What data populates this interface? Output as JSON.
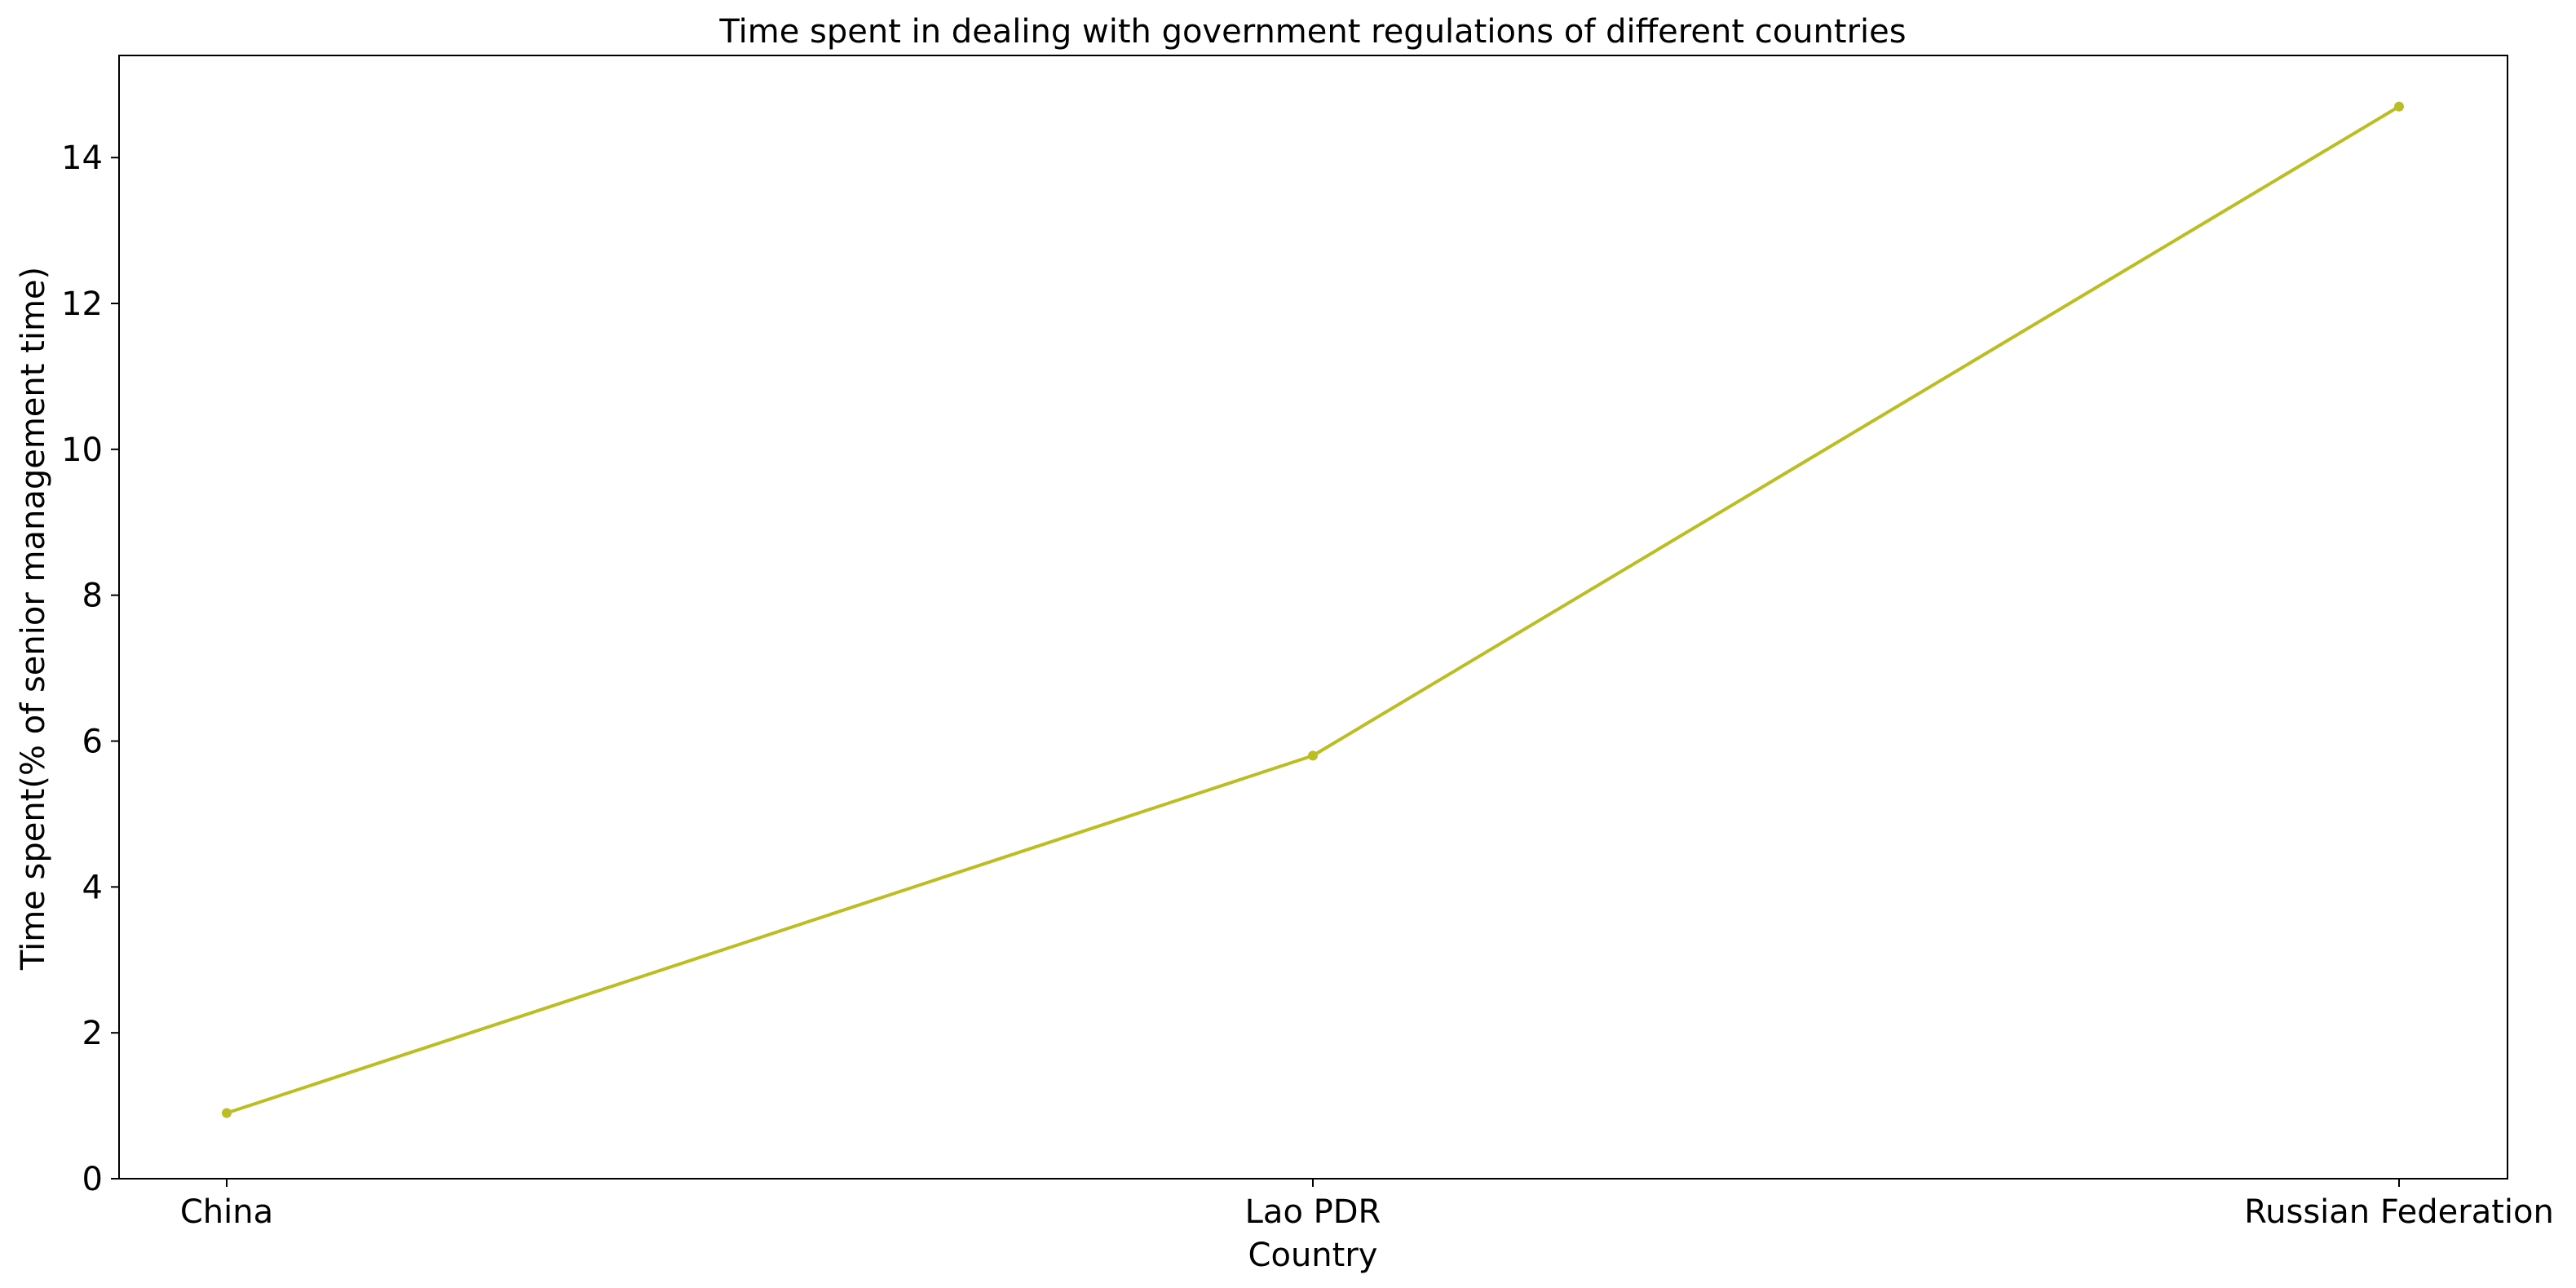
{
  "chart_data": {
    "type": "line",
    "title": "Time spent in dealing with government regulations of different countries",
    "xlabel": "Country",
    "ylabel": "Time spent(% of senior management time)",
    "categories": [
      "China",
      "Lao PDR",
      "Russian Federation"
    ],
    "series": [
      {
        "values": [
          0.9,
          5.8,
          14.7
        ],
        "color": "#bcbd22"
      }
    ],
    "ylim": [
      0,
      15.4
    ],
    "yticks": [
      0,
      2,
      4,
      6,
      8,
      10,
      12,
      14
    ],
    "ytick_labels": [
      "0",
      "2",
      "4",
      "6",
      "8",
      "10",
      "12",
      "14"
    ],
    "grid": false,
    "legend": "none"
  }
}
